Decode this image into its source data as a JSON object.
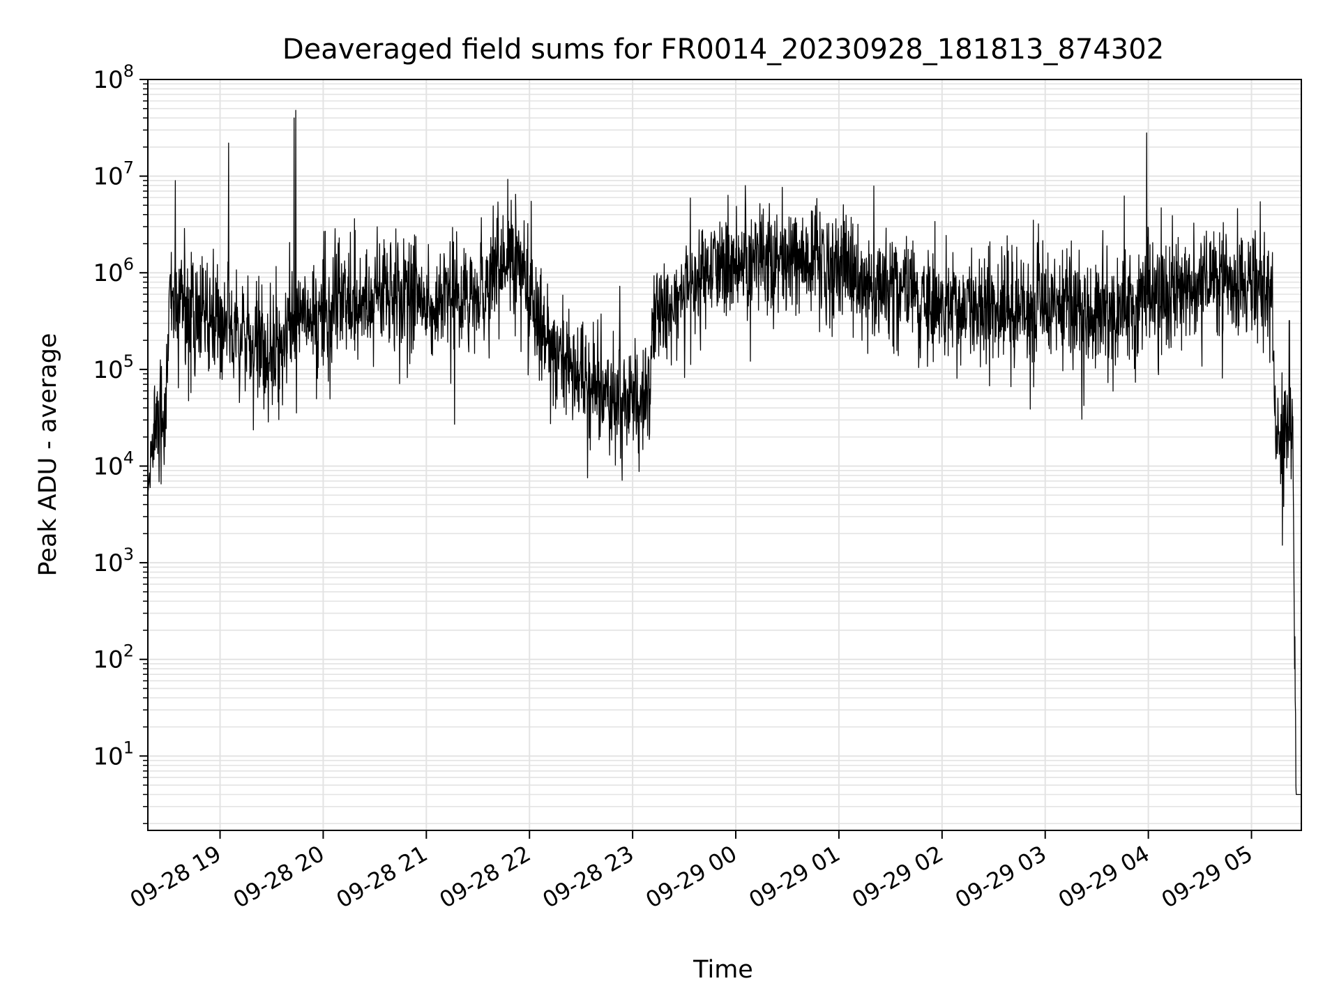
{
  "chart_data": {
    "type": "line",
    "title": "Deaveraged field sums for FR0014_20230928_181813_874302",
    "xlabel": "Time",
    "ylabel": "Peak ADU - average",
    "yscale": "log",
    "ylim": [
      1.7,
      100000000
    ],
    "xlim": [
      "09-28 18:18",
      "09-29 05:29"
    ],
    "grid": true,
    "line_color": "#000000",
    "grid_color": "#e3e3e3",
    "x_ticks": [
      {
        "t": "09-28 19:00",
        "label": "09-28 19"
      },
      {
        "t": "09-28 20:00",
        "label": "09-28 20"
      },
      {
        "t": "09-28 21:00",
        "label": "09-28 21"
      },
      {
        "t": "09-28 22:00",
        "label": "09-28 22"
      },
      {
        "t": "09-28 23:00",
        "label": "09-28 23"
      },
      {
        "t": "09-29 00:00",
        "label": "09-29 00"
      },
      {
        "t": "09-29 01:00",
        "label": "09-29 01"
      },
      {
        "t": "09-29 02:00",
        "label": "09-29 02"
      },
      {
        "t": "09-29 03:00",
        "label": "09-29 03"
      },
      {
        "t": "09-29 04:00",
        "label": "09-29 04"
      },
      {
        "t": "09-29 05:00",
        "label": "09-29 05"
      }
    ],
    "y_ticks": [
      {
        "value": 10,
        "base": "10",
        "exp": "1"
      },
      {
        "value": 100,
        "base": "10",
        "exp": "2"
      },
      {
        "value": 1000,
        "base": "10",
        "exp": "3"
      },
      {
        "value": 10000,
        "base": "10",
        "exp": "4"
      },
      {
        "value": 100000,
        "base": "10",
        "exp": "5"
      },
      {
        "value": 1000000,
        "base": "10",
        "exp": "6"
      },
      {
        "value": 10000000,
        "base": "10",
        "exp": "7"
      },
      {
        "value": 100000000,
        "base": "10",
        "exp": "8"
      }
    ],
    "series_envelope": [
      {
        "t": "09-28 18:18",
        "value": 5000
      },
      {
        "t": "09-28 18:21",
        "value": 25000
      },
      {
        "t": "09-28 18:25",
        "value": 30000
      },
      {
        "t": "09-28 18:28",
        "value": 20000
      },
      {
        "t": "09-28 18:31",
        "value": 800000
      },
      {
        "t": "09-28 18:40",
        "value": 400000
      },
      {
        "t": "09-28 19:00",
        "value": 350000
      },
      {
        "t": "09-28 19:30",
        "value": 120000
      },
      {
        "t": "09-28 19:50",
        "value": 350000
      },
      {
        "t": "09-28 20:30",
        "value": 600000
      },
      {
        "t": "09-28 21:00",
        "value": 500000
      },
      {
        "t": "09-28 21:30",
        "value": 600000
      },
      {
        "t": "09-28 21:50",
        "value": 1500000
      },
      {
        "t": "09-28 22:15",
        "value": 150000
      },
      {
        "t": "09-28 22:45",
        "value": 60000
      },
      {
        "t": "09-28 23:10",
        "value": 50000
      },
      {
        "t": "09-28 23:12",
        "value": 400000
      },
      {
        "t": "09-28 23:45",
        "value": 1000000
      },
      {
        "t": "09-29 00:30",
        "value": 1500000
      },
      {
        "t": "09-29 01:30",
        "value": 700000
      },
      {
        "t": "09-29 02:30",
        "value": 400000
      },
      {
        "t": "09-29 03:30",
        "value": 400000
      },
      {
        "t": "09-29 04:30",
        "value": 800000
      },
      {
        "t": "09-29 05:00",
        "value": 700000
      },
      {
        "t": "09-29 05:12",
        "value": 700000
      },
      {
        "t": "09-29 05:14",
        "value": 15000
      },
      {
        "t": "09-29 05:20",
        "value": 35000
      },
      {
        "t": "09-29 05:24",
        "value": 20000
      },
      {
        "t": "09-29 05:26",
        "value": 4
      },
      {
        "t": "09-29 05:29",
        "value": 4
      }
    ],
    "spikes": [
      {
        "t": "09-28 18:34",
        "value": 9000000
      },
      {
        "t": "09-28 19:05",
        "value": 22000000
      },
      {
        "t": "09-28 19:44",
        "value": 48000000
      },
      {
        "t": "09-28 19:43",
        "value": 40000000
      },
      {
        "t": "09-28 21:52",
        "value": 6500000
      },
      {
        "t": "09-28 22:01",
        "value": 5500000
      },
      {
        "t": "09-29 00:14",
        "value": 5200000
      },
      {
        "t": "09-29 03:59",
        "value": 28000000
      },
      {
        "t": "09-29 05:22",
        "value": 320000
      }
    ]
  }
}
